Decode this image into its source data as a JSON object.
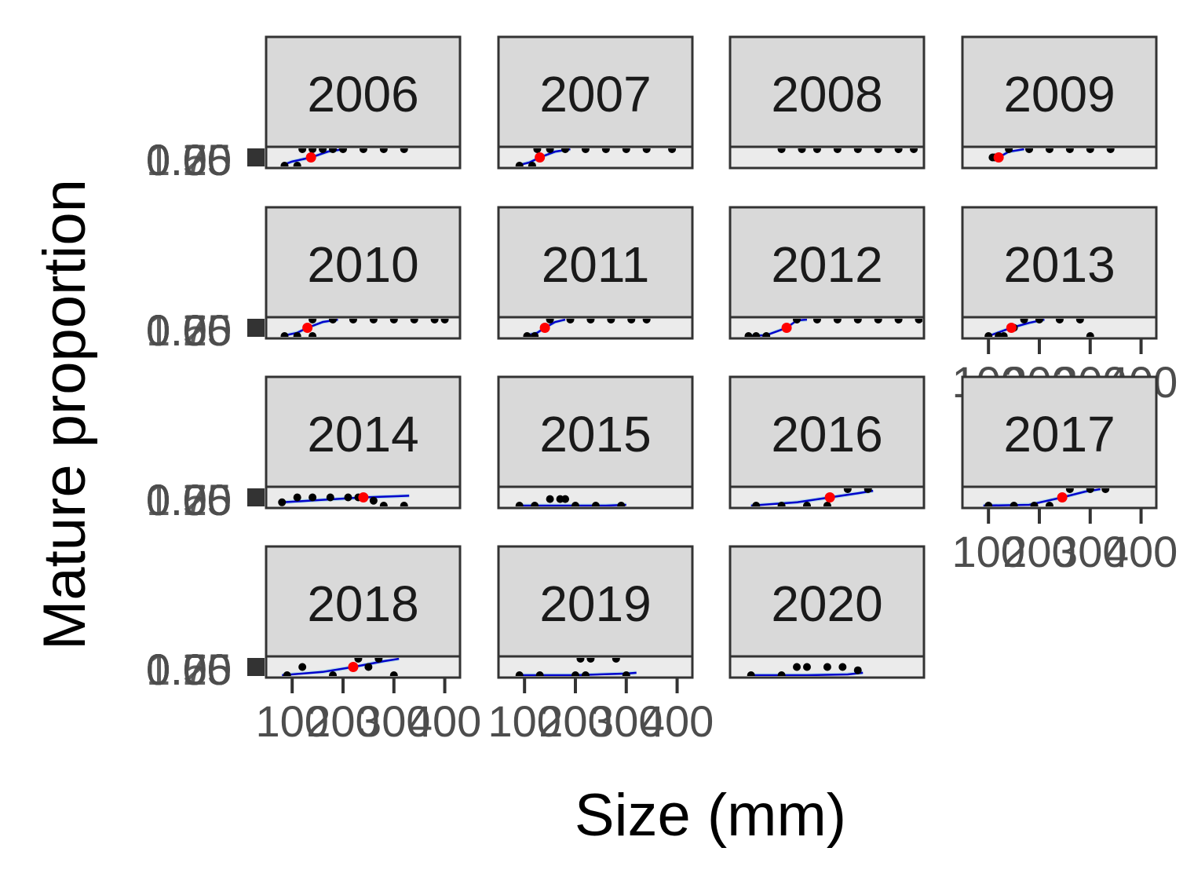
{
  "chart_data": {
    "type": "scatter",
    "title": "",
    "xlabel": "Size (mm)",
    "ylabel": "Mature proportion",
    "xlim": [
      75,
      430
    ],
    "ylim": [
      0,
      1
    ],
    "x_ticks": [
      100,
      200,
      300,
      400
    ],
    "x_tick_labels": [
      "100",
      "200",
      "300",
      "400"
    ],
    "y_ticks": [
      0,
      0.25,
      0.5,
      0.75,
      1
    ],
    "y_tick_labels": [
      "0.00",
      "0.25",
      "0.50",
      "0.75",
      "1.00"
    ],
    "colors": {
      "points": "#000000",
      "fit_line": "#0000cc",
      "ci_band": "#add8e6",
      "l50_marker": "#ff0000",
      "panel_bg": "#ebebeb",
      "strip_bg": "#d9d9d9",
      "border": "#333333"
    },
    "panels": [
      {
        "year": "2006",
        "l50": 137,
        "fit": [
          [
            78,
            0
          ],
          [
            100,
            0.25
          ],
          [
            137,
            0.5
          ],
          [
            170,
            0.85
          ],
          [
            200,
            1
          ]
        ],
        "points": [
          [
            85,
            0
          ],
          [
            110,
            0
          ],
          [
            120,
            1
          ],
          [
            140,
            1
          ],
          [
            160,
            1
          ],
          [
            180,
            1
          ],
          [
            200,
            1
          ],
          [
            240,
            1
          ],
          [
            280,
            1
          ],
          [
            320,
            1
          ]
        ]
      },
      {
        "year": "2007",
        "l50": 130,
        "fit": [
          [
            85,
            0
          ],
          [
            110,
            0.2
          ],
          [
            130,
            0.5
          ],
          [
            160,
            0.85
          ],
          [
            190,
            1
          ]
        ],
        "points": [
          [
            90,
            0
          ],
          [
            115,
            0
          ],
          [
            125,
            1
          ],
          [
            150,
            1
          ],
          [
            180,
            1
          ],
          [
            220,
            1
          ],
          [
            260,
            1
          ],
          [
            300,
            1
          ],
          [
            340,
            1
          ],
          [
            390,
            1
          ]
        ]
      },
      {
        "year": "2008",
        "l50": null,
        "fit": [],
        "points": [
          [
            150,
            1
          ],
          [
            190,
            1
          ],
          [
            220,
            1
          ],
          [
            260,
            1
          ],
          [
            300,
            1
          ],
          [
            340,
            1
          ],
          [
            380,
            1
          ],
          [
            410,
            1
          ]
        ]
      },
      {
        "year": "2009",
        "l50": 120,
        "fit": [
          [
            105,
            0.35
          ],
          [
            120,
            0.5
          ],
          [
            140,
            0.85
          ],
          [
            170,
            1
          ]
        ],
        "points": [
          [
            108,
            0.5
          ],
          [
            112,
            0.5
          ],
          [
            140,
            1
          ],
          [
            180,
            1
          ],
          [
            220,
            1
          ],
          [
            260,
            1
          ],
          [
            300,
            1
          ],
          [
            340,
            1
          ]
        ]
      },
      {
        "year": "2010",
        "l50": 130,
        "fit": [
          [
            80,
            0
          ],
          [
            110,
            0.2
          ],
          [
            130,
            0.5
          ],
          [
            160,
            0.85
          ],
          [
            190,
            1
          ]
        ],
        "points": [
          [
            85,
            0
          ],
          [
            110,
            0
          ],
          [
            140,
            0
          ],
          [
            140,
            1
          ],
          [
            180,
            1
          ],
          [
            220,
            1
          ],
          [
            260,
            1
          ],
          [
            300,
            1
          ],
          [
            340,
            1
          ],
          [
            380,
            1
          ],
          [
            400,
            1
          ]
        ]
      },
      {
        "year": "2011",
        "l50": 140,
        "fit": [
          [
            100,
            0
          ],
          [
            125,
            0.2
          ],
          [
            140,
            0.5
          ],
          [
            160,
            0.85
          ],
          [
            180,
            1
          ]
        ],
        "points": [
          [
            105,
            0
          ],
          [
            120,
            0
          ],
          [
            150,
            1
          ],
          [
            190,
            1
          ],
          [
            230,
            1
          ],
          [
            270,
            1
          ],
          [
            310,
            1
          ],
          [
            340,
            1
          ]
        ]
      },
      {
        "year": "2012",
        "l50": 160,
        "fit": [
          [
            80,
            0
          ],
          [
            120,
            0.05
          ],
          [
            160,
            0.5
          ],
          [
            180,
            0.95
          ],
          [
            200,
            1
          ]
        ],
        "points": [
          [
            85,
            0
          ],
          [
            100,
            0
          ],
          [
            120,
            0
          ],
          [
            180,
            1
          ],
          [
            220,
            1
          ],
          [
            260,
            1
          ],
          [
            300,
            1
          ],
          [
            340,
            1
          ],
          [
            380,
            1
          ],
          [
            420,
            1
          ]
        ]
      },
      {
        "year": "2013",
        "l50": 145,
        "fit": [
          [
            100,
            0
          ],
          [
            145,
            0.5
          ],
          [
            180,
            0.8
          ],
          [
            210,
            1
          ]
        ],
        "points": [
          [
            100,
            0
          ],
          [
            120,
            0
          ],
          [
            130,
            0
          ],
          [
            150,
            0.5
          ],
          [
            170,
            1
          ],
          [
            200,
            1
          ],
          [
            240,
            1
          ],
          [
            280,
            1
          ],
          [
            300,
            0
          ]
        ]
      },
      {
        "year": "2014",
        "l50": 240,
        "fit": [
          [
            80,
            0.2
          ],
          [
            160,
            0.35
          ],
          [
            240,
            0.5
          ],
          [
            330,
            0.6
          ]
        ],
        "points": [
          [
            80,
            0.2
          ],
          [
            110,
            0.5
          ],
          [
            140,
            0.5
          ],
          [
            175,
            0.5
          ],
          [
            210,
            0.5
          ],
          [
            230,
            0.5
          ],
          [
            260,
            0.3
          ],
          [
            280,
            0
          ],
          [
            320,
            0
          ]
        ]
      },
      {
        "year": "2015",
        "l50": null,
        "fit": [
          [
            90,
            0
          ],
          [
            180,
            0
          ],
          [
            260,
            0
          ],
          [
            300,
            0.05
          ]
        ],
        "points": [
          [
            90,
            0
          ],
          [
            120,
            0
          ],
          [
            150,
            0.4
          ],
          [
            170,
            0.4
          ],
          [
            180,
            0.4
          ],
          [
            200,
            0
          ],
          [
            240,
            0
          ],
          [
            290,
            0
          ]
        ]
      },
      {
        "year": "2016",
        "l50": 245,
        "fit": [
          [
            90,
            0
          ],
          [
            180,
            0.2
          ],
          [
            245,
            0.5
          ],
          [
            300,
            0.75
          ],
          [
            330,
            0.9
          ]
        ],
        "points": [
          [
            100,
            0
          ],
          [
            150,
            0
          ],
          [
            200,
            0
          ],
          [
            240,
            0
          ],
          [
            280,
            1
          ],
          [
            320,
            1
          ]
        ]
      },
      {
        "year": "2017",
        "l50": 245,
        "fit": [
          [
            90,
            0
          ],
          [
            180,
            0.05
          ],
          [
            245,
            0.5
          ],
          [
            290,
            0.85
          ],
          [
            320,
            1
          ]
        ],
        "points": [
          [
            100,
            0
          ],
          [
            150,
            0
          ],
          [
            190,
            0
          ],
          [
            220,
            0
          ],
          [
            260,
            1
          ],
          [
            300,
            1
          ],
          [
            330,
            1
          ]
        ]
      },
      {
        "year": "2018",
        "l50": 220,
        "fit": [
          [
            80,
            0
          ],
          [
            160,
            0.2
          ],
          [
            220,
            0.5
          ],
          [
            280,
            0.85
          ],
          [
            310,
            1
          ]
        ],
        "points": [
          [
            90,
            0
          ],
          [
            120,
            0.5
          ],
          [
            180,
            0
          ],
          [
            230,
            1
          ],
          [
            250,
            0.5
          ],
          [
            270,
            1
          ],
          [
            300,
            0
          ]
        ]
      },
      {
        "year": "2019",
        "l50": null,
        "fit": [
          [
            90,
            0
          ],
          [
            200,
            0
          ],
          [
            300,
            0.1
          ],
          [
            320,
            0.15
          ]
        ],
        "points": [
          [
            90,
            0
          ],
          [
            130,
            0
          ],
          [
            200,
            0
          ],
          [
            210,
            1
          ],
          [
            220,
            0
          ],
          [
            230,
            1
          ],
          [
            280,
            1
          ],
          [
            300,
            0
          ]
        ]
      },
      {
        "year": "2020",
        "l50": null,
        "fit": [
          [
            85,
            0
          ],
          [
            200,
            0
          ],
          [
            280,
            0.05
          ],
          [
            310,
            0.15
          ]
        ],
        "points": [
          [
            90,
            0
          ],
          [
            150,
            0
          ],
          [
            180,
            0.5
          ],
          [
            200,
            0.5
          ],
          [
            240,
            0.5
          ],
          [
            270,
            0.5
          ],
          [
            300,
            0.3
          ]
        ]
      }
    ]
  }
}
